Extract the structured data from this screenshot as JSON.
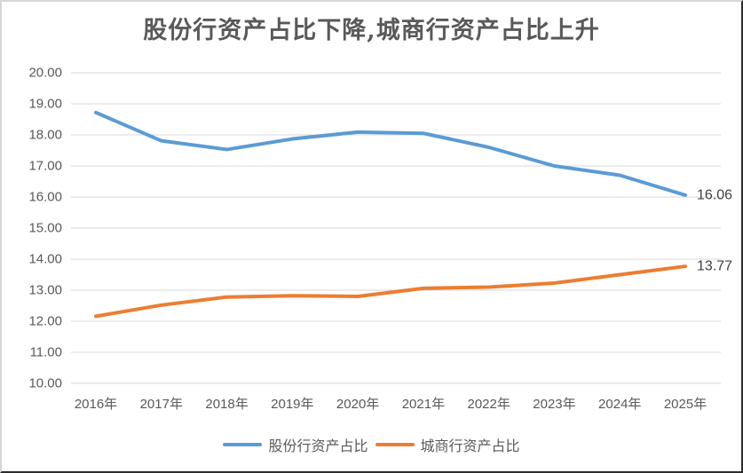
{
  "chart_data": {
    "type": "line",
    "title": "股份行资产占比下降,城商行资产占比上升",
    "categories": [
      "2016年",
      "2017年",
      "2018年",
      "2019年",
      "2020年",
      "2021年",
      "2022年",
      "2023年",
      "2024年",
      "2025年"
    ],
    "series": [
      {
        "name": "股份行资产占比",
        "color": "#5B9BD5",
        "values": [
          18.72,
          17.81,
          17.53,
          17.87,
          18.09,
          18.05,
          17.6,
          17.0,
          16.7,
          16.06
        ],
        "end_label": "16.06"
      },
      {
        "name": "城商行资产占比",
        "color": "#ED7D31",
        "values": [
          12.16,
          12.52,
          12.78,
          12.82,
          12.8,
          13.06,
          13.1,
          13.23,
          13.5,
          13.77
        ],
        "end_label": "13.77"
      }
    ],
    "ylim": [
      10,
      20
    ],
    "ystep": 1,
    "ytick_labels": [
      "20.00",
      "19.00",
      "18.00",
      "17.00",
      "16.00",
      "15.00",
      "14.00",
      "13.00",
      "12.00",
      "11.00",
      "10.00"
    ],
    "xlabel": "",
    "ylabel": "",
    "grid": "horizontal",
    "grid_color": "#D9D9D9",
    "axis_text_color": "#595959",
    "data_label_color": "#404040",
    "legend_position": "bottom"
  }
}
